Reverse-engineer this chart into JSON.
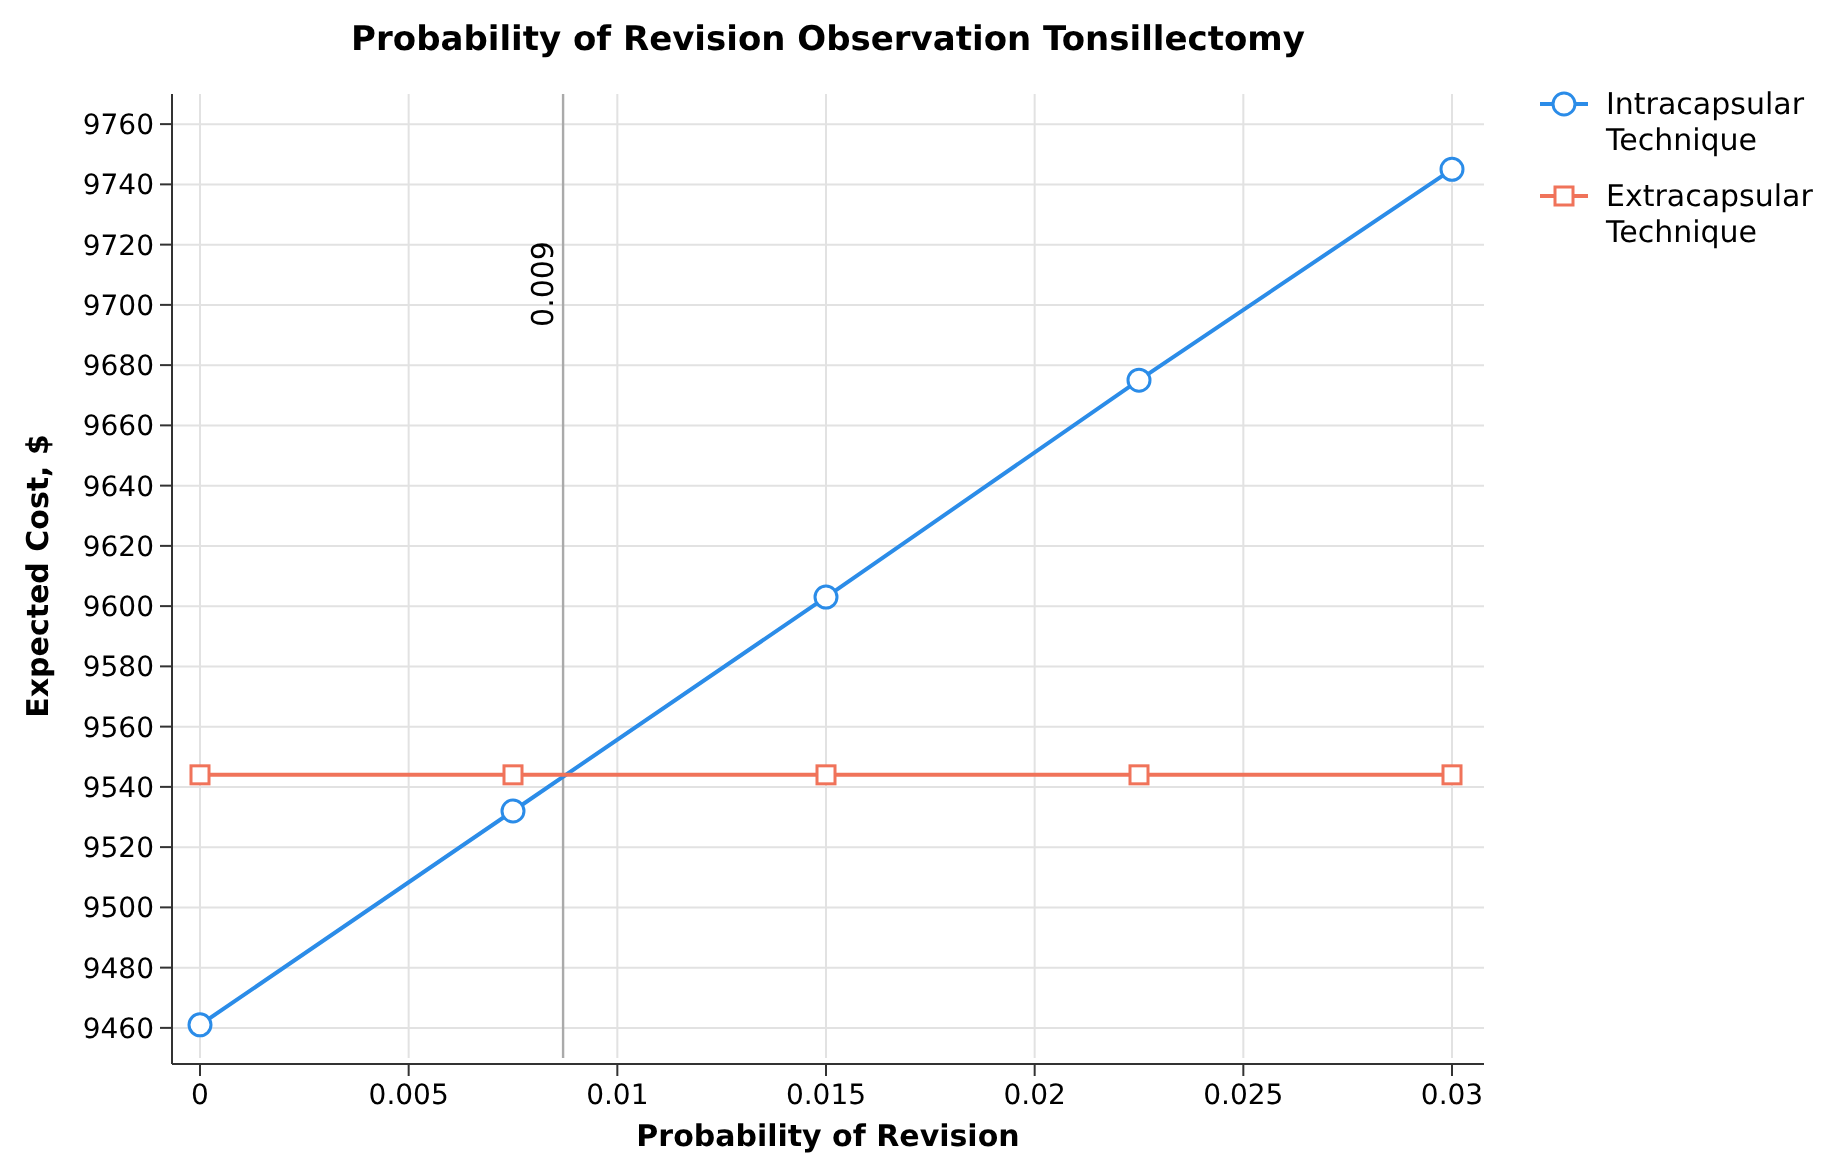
{
  "chart_data": {
    "type": "line",
    "title": "Probability of Revision Observation Tonsillectomy",
    "xlabel": "Probability of Revision",
    "ylabel": "Expected Cost, $",
    "x": [
      0,
      0.0075,
      0.015,
      0.0225,
      0.03
    ],
    "series": [
      {
        "name": "Intracapsular Technique",
        "color": "#2b8ce8",
        "values": [
          9461,
          9532,
          9603,
          9675,
          9745
        ],
        "marker": "circle"
      },
      {
        "name": "Extracapsular Technique",
        "color": "#f0735a",
        "values": [
          9544,
          9544,
          9544,
          9544,
          9544
        ],
        "marker": "square"
      }
    ],
    "xlim": [
      0,
      0.03
    ],
    "xticks": [
      0,
      0.005,
      0.01,
      0.015,
      0.02,
      0.025,
      0.03
    ],
    "ylim": [
      9450,
      9770
    ],
    "yticks": [
      9460,
      9480,
      9500,
      9520,
      9540,
      9560,
      9580,
      9600,
      9620,
      9640,
      9660,
      9680,
      9700,
      9720,
      9740,
      9760
    ],
    "ref_lines": [
      {
        "axis": "x",
        "value": 0.0087,
        "label": "0.009",
        "color": "#aaaaaa"
      }
    ],
    "grid": true,
    "legend": "top right",
    "line_style": "solid"
  }
}
